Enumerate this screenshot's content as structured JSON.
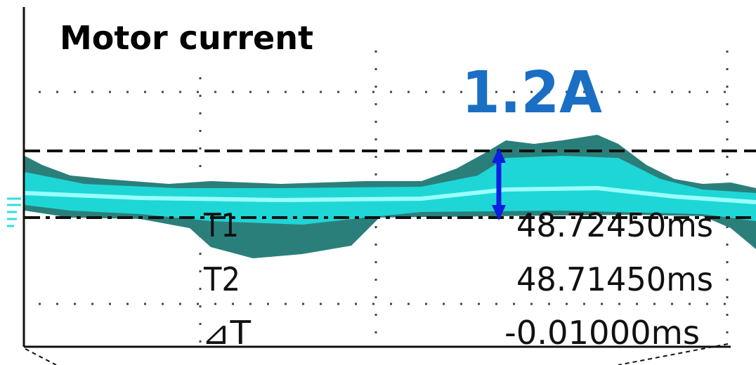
{
  "title": "Motor current",
  "annotation": "1.2A",
  "readouts": [
    {
      "label": "T1",
      "value": "48.72450ms"
    },
    {
      "label": "T2",
      "value": "48.71450ms"
    },
    {
      "label": "⊿T",
      "value": "-0.01000ms"
    }
  ]
}
